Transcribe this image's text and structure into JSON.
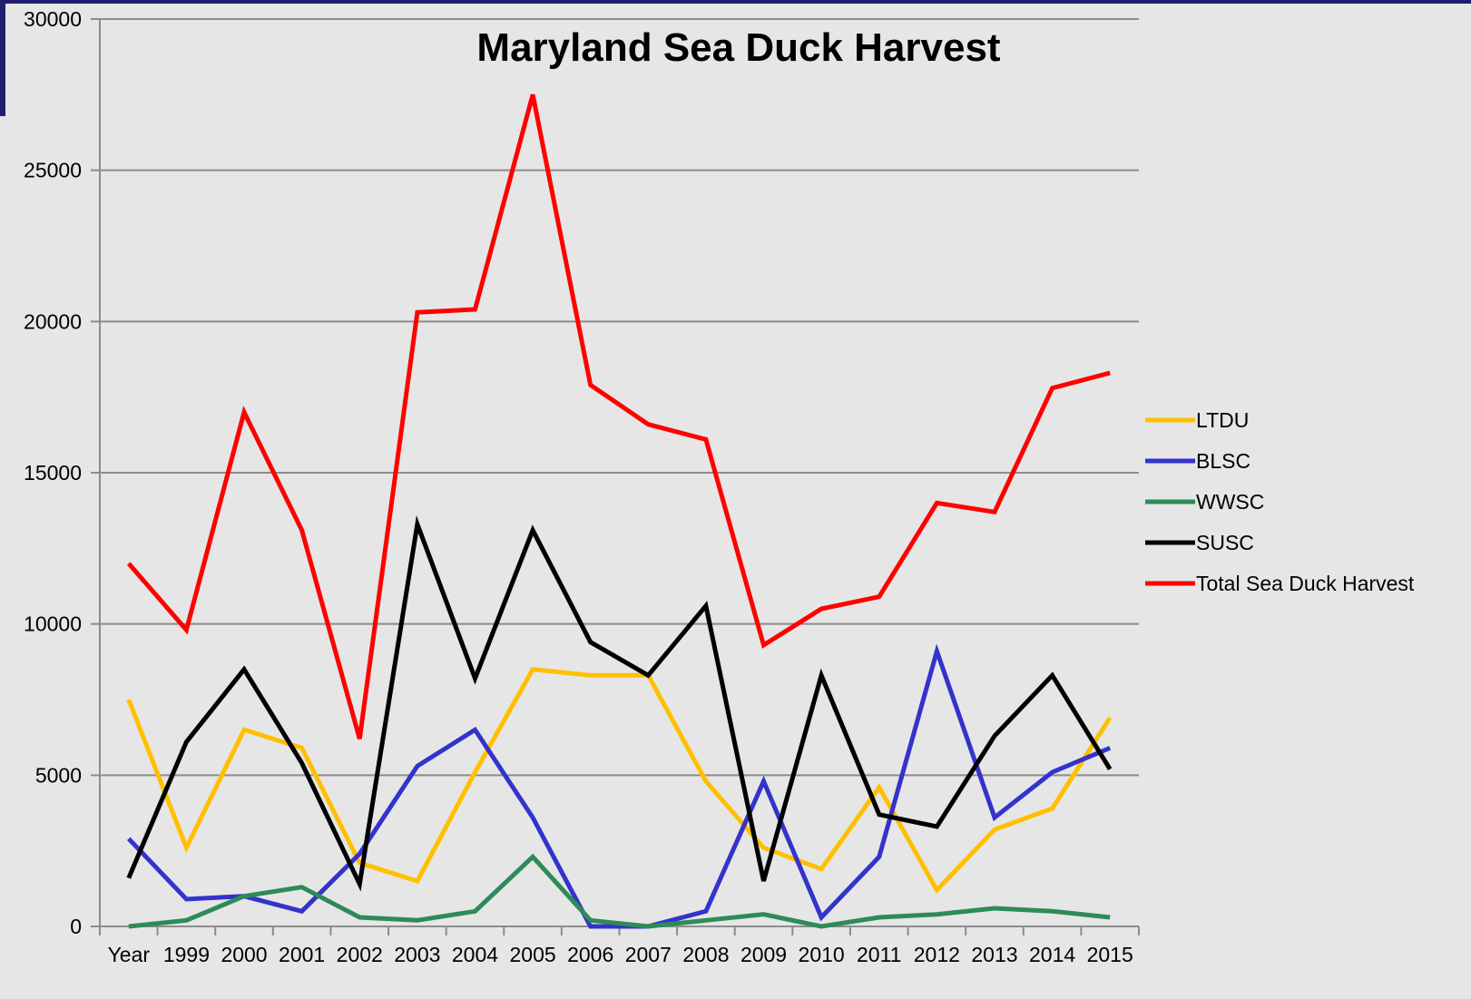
{
  "chart_data": {
    "type": "line",
    "title": "Maryland Sea Duck Harvest",
    "xlabel": "",
    "ylabel": "",
    "categories": [
      "Year",
      "1999",
      "2000",
      "2001",
      "2002",
      "2003",
      "2004",
      "2005",
      "2006",
      "2007",
      "2008",
      "2009",
      "2010",
      "2011",
      "2012",
      "2013",
      "2014",
      "2015"
    ],
    "ylim": [
      0,
      30000
    ],
    "yticks": [
      "0",
      "5000",
      "10000",
      "15000",
      "20000",
      "25000",
      "30000"
    ],
    "grid": true,
    "legend_position": "right",
    "series": [
      {
        "name": "LTDU",
        "color": "#ffc000",
        "values": [
          7500,
          2600,
          6500,
          5900,
          2100,
          1500,
          5100,
          8500,
          8300,
          8300,
          4800,
          2600,
          1900,
          4600,
          1200,
          3200,
          3900,
          6900
        ]
      },
      {
        "name": "BLSC",
        "color": "#3333cc",
        "values": [
          2900,
          900,
          1000,
          500,
          2400,
          5300,
          6500,
          3600,
          0,
          0,
          500,
          4800,
          300,
          2300,
          9100,
          3600,
          5100,
          5900
        ]
      },
      {
        "name": "WWSC",
        "color": "#2e8b57",
        "values": [
          0,
          200,
          1000,
          1300,
          300,
          200,
          500,
          2300,
          200,
          0,
          200,
          400,
          0,
          300,
          400,
          600,
          500,
          300
        ]
      },
      {
        "name": "SUSC",
        "color": "#000000",
        "values": [
          1600,
          6100,
          8500,
          5400,
          1400,
          13300,
          8200,
          13100,
          9400,
          8300,
          10600,
          1500,
          8300,
          3700,
          3300,
          6300,
          8300,
          5200
        ]
      },
      {
        "name": "Total Sea Duck Harvest",
        "color": "#ff0000",
        "values": [
          12000,
          9800,
          17000,
          13100,
          6200,
          20300,
          20400,
          27500,
          17900,
          16600,
          16100,
          9300,
          10500,
          10900,
          14000,
          13700,
          17800,
          18300
        ]
      }
    ]
  }
}
